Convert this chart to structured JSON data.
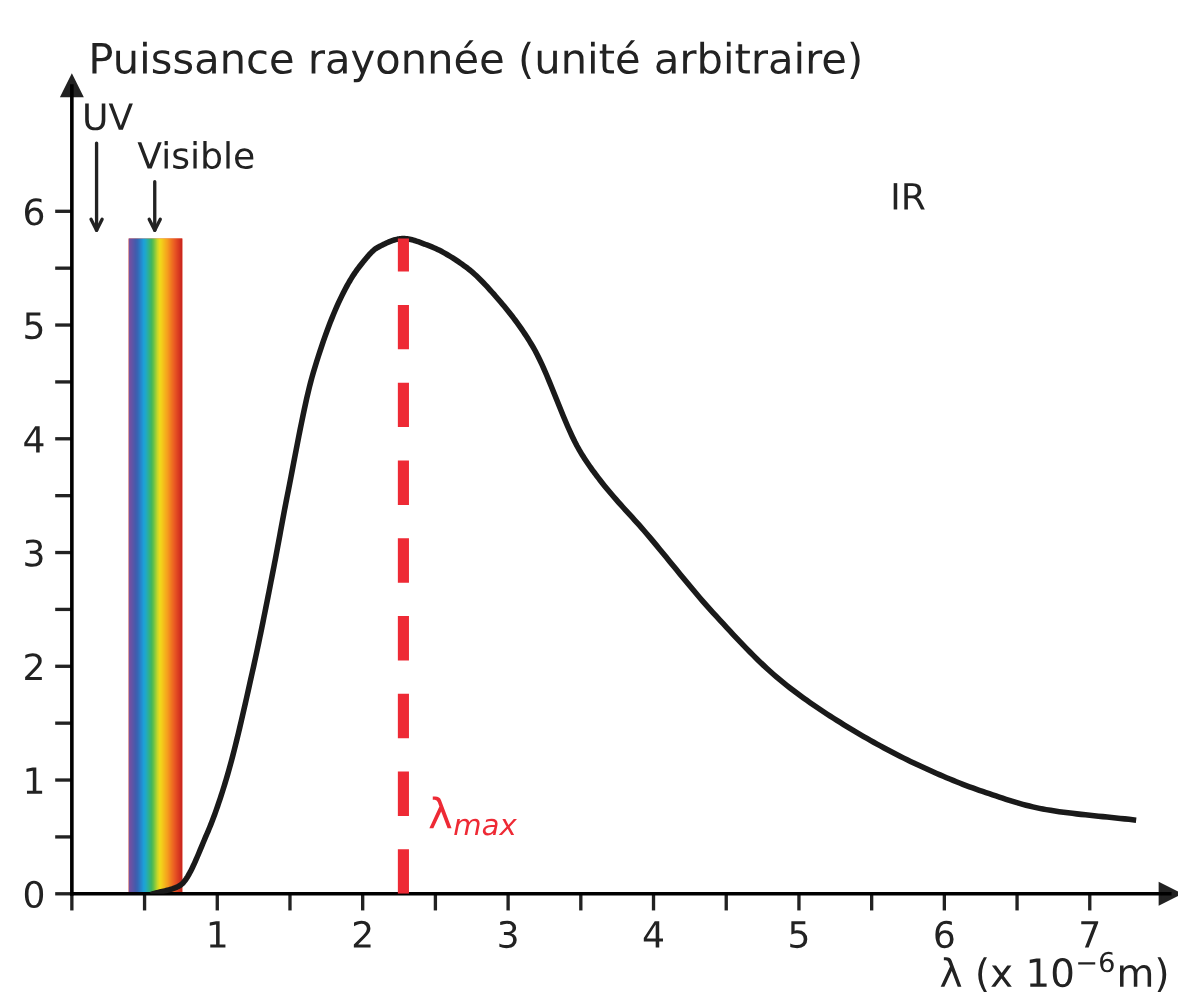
{
  "chart_data": {
    "type": "line",
    "ylabel": "Puissance rayonnée (unité arbitraire)",
    "xlabel": "λ (x 10$^{−6}$m)",
    "xlim": [
      0,
      7.55
    ],
    "ylim": [
      0,
      7.1
    ],
    "xticks": [
      {
        "value": 0,
        "label": null
      },
      {
        "value": 0.5,
        "label": null
      },
      1,
      {
        "value": 1.5,
        "label": null
      },
      2,
      {
        "value": 2.5,
        "label": null
      },
      3,
      {
        "value": 3.5,
        "label": null
      },
      4,
      {
        "value": 4.5,
        "label": null
      },
      5,
      {
        "value": 5.5,
        "label": null
      },
      6,
      {
        "value": 6.5,
        "label": null
      },
      7
    ],
    "yticks": [
      0,
      {
        "value": 0.5,
        "label": null
      },
      1,
      {
        "value": 1.5,
        "label": null
      },
      2,
      {
        "value": 2.5,
        "label": null
      },
      3,
      {
        "value": 3.5,
        "label": null
      },
      4,
      {
        "value": 4.5,
        "label": null
      },
      5,
      {
        "value": 5.5,
        "label": null
      },
      6
    ],
    "grid": false,
    "marker": "none",
    "line_style": "solid",
    "series": [
      {
        "color": "#1a1a1a",
        "x": [
          0.56,
          0.74,
          0.93,
          1.06,
          1.25,
          1.39,
          1.48,
          1.66,
          1.89,
          2.0,
          2.1,
          2.28,
          2.45,
          2.71,
          2.95,
          3.17,
          3.49,
          3.63,
          3.95,
          4.41,
          4.87,
          5.33,
          5.79,
          6.24,
          6.7,
          7.3
        ],
        "values": [
          0,
          0.07,
          0.53,
          1.0,
          2.0,
          2.88,
          3.49,
          4.58,
          5.34,
          5.55,
          5.68,
          5.76,
          5.7,
          5.51,
          5.2,
          4.81,
          3.9,
          3.64,
          3.17,
          2.47,
          1.88,
          1.47,
          1.15,
          0.91,
          0.74,
          0.65
        ]
      }
    ],
    "ref_lines": [
      {
        "axis": "x",
        "value": 2.28,
        "label": "λ$_{max}$",
        "color": "#ee2a35",
        "line_style": "dashed"
      }
    ],
    "bands": [
      {
        "axis": "x",
        "from": 0.39,
        "to": 0.76,
        "color": "#e8502a"
      }
    ],
    "annotations": [
      "UV",
      {
        "text": "Visible",
        "x": 0.57,
        "y": 5.76
      },
      "IR"
    ]
  }
}
